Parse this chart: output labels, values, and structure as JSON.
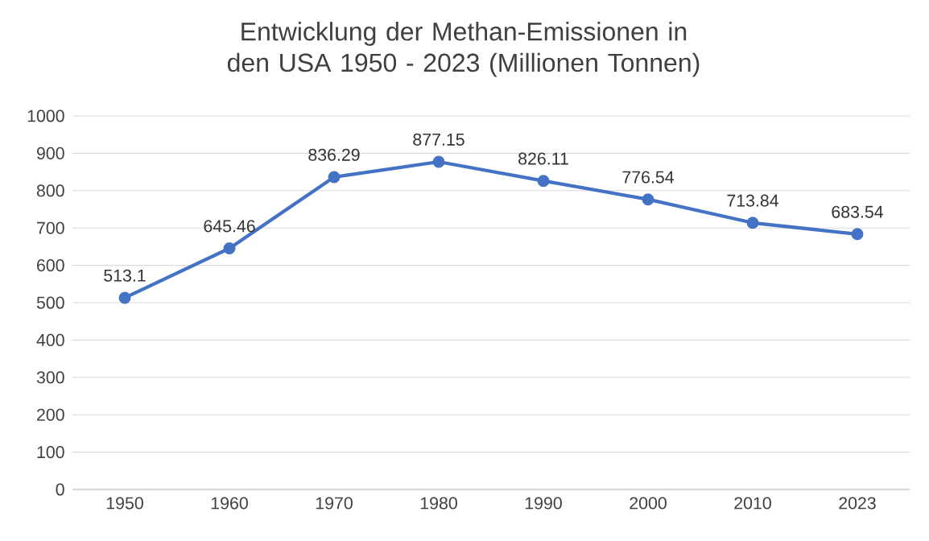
{
  "chart_data": {
    "type": "line",
    "title": "Entwicklung der Methan-Emissionen in den USA 1950 - 2023 (Millionen Tonnen)",
    "categories": [
      "1950",
      "1960",
      "1970",
      "1980",
      "1990",
      "2000",
      "2010",
      "2023"
    ],
    "values": [
      513.1,
      645.46,
      836.29,
      877.15,
      826.11,
      776.54,
      713.84,
      683.54
    ],
    "color": "#4472c4",
    "ylim": [
      0,
      1000
    ],
    "yticks": [
      0,
      100,
      200,
      300,
      400,
      500,
      600,
      700,
      800,
      900,
      1000
    ],
    "grid": "y",
    "marker": "circle",
    "line_style": "solid",
    "data_labels": true
  }
}
